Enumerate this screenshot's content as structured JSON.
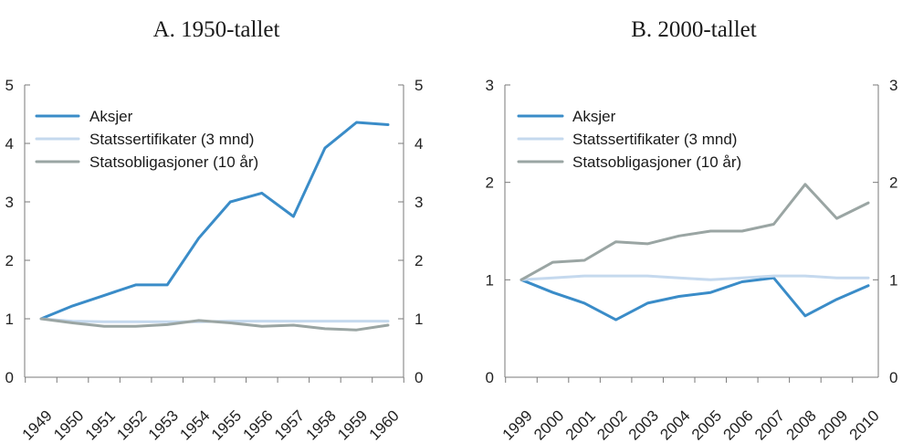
{
  "chart_data": [
    {
      "type": "line",
      "title": "A. 1950-tallet",
      "categories": [
        "1949",
        "1950",
        "1951",
        "1952",
        "1953",
        "1954",
        "1955",
        "1956",
        "1957",
        "1958",
        "1959",
        "1960"
      ],
      "ylim": [
        0,
        5
      ],
      "yticks": [
        0,
        1,
        2,
        3,
        4,
        5
      ],
      "dual_y_axis": true,
      "grid": false,
      "legend_position": "top-left",
      "series": [
        {
          "name": "Aksjer",
          "color": "#3a8cc8",
          "values": [
            1.0,
            1.22,
            1.4,
            1.58,
            1.58,
            2.38,
            3.0,
            3.15,
            2.75,
            3.92,
            4.36,
            4.32
          ]
        },
        {
          "name": "Statssertifikater (3 mnd)",
          "color": "#c5d9ee",
          "values": [
            1.0,
            0.96,
            0.95,
            0.95,
            0.95,
            0.95,
            0.96,
            0.96,
            0.96,
            0.96,
            0.96,
            0.96
          ]
        },
        {
          "name": "Statsobligasjoner (10 år)",
          "color": "#9aa5a3",
          "values": [
            1.0,
            0.93,
            0.87,
            0.87,
            0.9,
            0.97,
            0.93,
            0.87,
            0.89,
            0.83,
            0.81,
            0.89
          ]
        }
      ]
    },
    {
      "type": "line",
      "title": "B. 2000-tallet",
      "categories": [
        "1999",
        "2000",
        "2001",
        "2002",
        "2003",
        "2004",
        "2005",
        "2006",
        "2007",
        "2008",
        "2009",
        "2010"
      ],
      "ylim": [
        0,
        3
      ],
      "yticks": [
        0,
        1,
        2,
        3
      ],
      "dual_y_axis": true,
      "grid": false,
      "legend_position": "top-left",
      "series": [
        {
          "name": "Aksjer",
          "color": "#3a8cc8",
          "values": [
            1.0,
            0.87,
            0.76,
            0.59,
            0.76,
            0.83,
            0.87,
            0.98,
            1.02,
            0.63,
            0.8,
            0.94
          ]
        },
        {
          "name": "Statssertifikater (3 mnd)",
          "color": "#c5d9ee",
          "values": [
            1.0,
            1.02,
            1.04,
            1.04,
            1.04,
            1.02,
            1.0,
            1.02,
            1.04,
            1.04,
            1.02,
            1.02
          ]
        },
        {
          "name": "Statsobligasjoner (10 år)",
          "color": "#9aa5a3",
          "values": [
            1.0,
            1.18,
            1.2,
            1.39,
            1.37,
            1.45,
            1.5,
            1.5,
            1.57,
            1.98,
            1.63,
            1.79
          ]
        }
      ]
    }
  ]
}
